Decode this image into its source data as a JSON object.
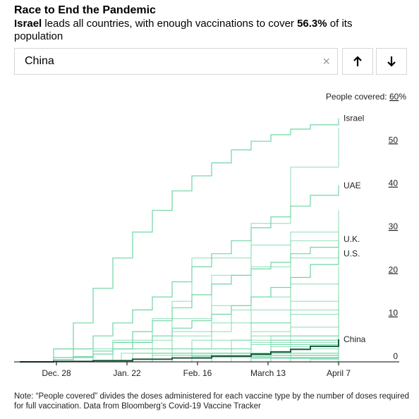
{
  "header": {
    "title": "Race to End the Pandemic",
    "subtitle_country": "Israel",
    "subtitle_mid": " leads all countries, with enough vaccinations to cover ",
    "subtitle_value": "56.3%",
    "subtitle_end": " of its population"
  },
  "search": {
    "value": "China",
    "clear_icon": "close-icon",
    "clear_glyph": "×",
    "prev_icon": "arrow-up-icon",
    "next_icon": "arrow-down-icon"
  },
  "note": "Note: “People covered” divides the doses administered for each vaccine type by the number of doses required for full vaccination. Data from Bloomberg’s Covid-19 Vaccine Tracker",
  "chart_data": {
    "type": "line",
    "title": "",
    "ylabel": "People covered:",
    "y_unit": "%",
    "ylim": [
      0,
      60
    ],
    "y_ticks": [
      0,
      10,
      20,
      30,
      40,
      50,
      60
    ],
    "x_start": "2020-12-13",
    "x_end": "2021-04-07",
    "x_ticks": [
      {
        "date": "2020-12-28",
        "label": "Dec. 28"
      },
      {
        "date": "2021-01-22",
        "label": "Jan. 22"
      },
      {
        "date": "2021-02-16",
        "label": "Feb. 16"
      },
      {
        "date": "2021-03-13",
        "label": "March 13"
      },
      {
        "date": "2021-04-07",
        "label": "April 7"
      }
    ],
    "colors": {
      "series": "#6fd6a4",
      "highlight": "#1f5a3c",
      "axis": "#000000"
    },
    "labeled_series": [
      {
        "name": "Israel",
        "points": [
          [
            "2020-12-20",
            0
          ],
          [
            "2020-12-27",
            3
          ],
          [
            "2021-01-03",
            9
          ],
          [
            "2021-01-10",
            17
          ],
          [
            "2021-01-17",
            24
          ],
          [
            "2021-01-24",
            30
          ],
          [
            "2021-01-31",
            35
          ],
          [
            "2021-02-07",
            39.5
          ],
          [
            "2021-02-14",
            43
          ],
          [
            "2021-02-21",
            46
          ],
          [
            "2021-02-28",
            49
          ],
          [
            "2021-03-07",
            51
          ],
          [
            "2021-03-14",
            52.5
          ],
          [
            "2021-03-21",
            53.8
          ],
          [
            "2021-03-28",
            54.8
          ],
          [
            "2021-04-07",
            56.3
          ]
        ]
      },
      {
        "name": "UAE",
        "points": [
          [
            "2020-12-18",
            0
          ],
          [
            "2020-12-27",
            1
          ],
          [
            "2021-01-03",
            3
          ],
          [
            "2021-01-10",
            6
          ],
          [
            "2021-01-17",
            9
          ],
          [
            "2021-01-24",
            12
          ],
          [
            "2021-01-31",
            15
          ],
          [
            "2021-02-07",
            18.5
          ],
          [
            "2021-02-14",
            22
          ],
          [
            "2021-02-21",
            25
          ],
          [
            "2021-02-28",
            28
          ],
          [
            "2021-03-07",
            31
          ],
          [
            "2021-03-14",
            33.5
          ],
          [
            "2021-03-21",
            36
          ],
          [
            "2021-03-28",
            38.5
          ],
          [
            "2021-04-07",
            40.8
          ]
        ]
      },
      {
        "name": "U.K.",
        "points": [
          [
            "2020-12-15",
            0
          ],
          [
            "2020-12-27",
            0.5
          ],
          [
            "2021-01-03",
            1.2
          ],
          [
            "2021-01-10",
            2.5
          ],
          [
            "2021-01-17",
            4.5
          ],
          [
            "2021-01-24",
            7
          ],
          [
            "2021-01-31",
            9.5
          ],
          [
            "2021-02-07",
            12.5
          ],
          [
            "2021-02-14",
            15.5
          ],
          [
            "2021-02-21",
            18
          ],
          [
            "2021-02-28",
            20
          ],
          [
            "2021-03-07",
            21.5
          ],
          [
            "2021-03-14",
            23
          ],
          [
            "2021-03-21",
            25
          ],
          [
            "2021-03-28",
            26.5
          ],
          [
            "2021-04-07",
            27.7
          ]
        ]
      },
      {
        "name": "U.S.",
        "points": [
          [
            "2020-12-15",
            0
          ],
          [
            "2020-12-27",
            0.5
          ],
          [
            "2021-01-03",
            1
          ],
          [
            "2021-01-10",
            1.8
          ],
          [
            "2021-01-17",
            3
          ],
          [
            "2021-01-24",
            4.5
          ],
          [
            "2021-01-31",
            6
          ],
          [
            "2021-02-07",
            7.8
          ],
          [
            "2021-02-14",
            9.5
          ],
          [
            "2021-02-21",
            11
          ],
          [
            "2021-02-28",
            13
          ],
          [
            "2021-03-07",
            15
          ],
          [
            "2021-03-14",
            17.2
          ],
          [
            "2021-03-21",
            19.5
          ],
          [
            "2021-03-28",
            22.5
          ],
          [
            "2021-04-07",
            26
          ]
        ]
      },
      {
        "name": "China",
        "points": [
          [
            "2020-12-15",
            0
          ],
          [
            "2020-12-27",
            0.1
          ],
          [
            "2021-01-10",
            0.3
          ],
          [
            "2021-01-24",
            0.6
          ],
          [
            "2021-02-07",
            0.9
          ],
          [
            "2021-02-21",
            1.3
          ],
          [
            "2021-03-07",
            1.8
          ],
          [
            "2021-03-14",
            2.3
          ],
          [
            "2021-03-21",
            2.9
          ],
          [
            "2021-03-28",
            3.6
          ],
          [
            "2021-04-07",
            5.2
          ]
        ]
      }
    ],
    "other_series": [
      {
        "points": [
          [
            "2020-12-20",
            0
          ],
          [
            "2021-01-10",
            3
          ],
          [
            "2021-01-31",
            10
          ],
          [
            "2021-02-21",
            20
          ],
          [
            "2021-03-07",
            32
          ],
          [
            "2021-03-21",
            45
          ],
          [
            "2021-04-07",
            54
          ]
        ]
      },
      {
        "points": [
          [
            "2021-01-01",
            0
          ],
          [
            "2021-01-20",
            2
          ],
          [
            "2021-02-07",
            6
          ],
          [
            "2021-02-21",
            13
          ],
          [
            "2021-03-07",
            22
          ],
          [
            "2021-03-21",
            30
          ],
          [
            "2021-04-07",
            35
          ]
        ]
      },
      {
        "points": [
          [
            "2021-01-05",
            0
          ],
          [
            "2021-01-31",
            3
          ],
          [
            "2021-02-21",
            9
          ],
          [
            "2021-03-07",
            15
          ],
          [
            "2021-03-21",
            24
          ],
          [
            "2021-04-07",
            31
          ]
        ]
      },
      {
        "points": [
          [
            "2020-12-20",
            0
          ],
          [
            "2021-01-17",
            5
          ],
          [
            "2021-02-07",
            14
          ],
          [
            "2021-02-14",
            24
          ],
          [
            "2021-03-07",
            27
          ],
          [
            "2021-03-21",
            28
          ],
          [
            "2021-04-07",
            30
          ]
        ]
      },
      {
        "points": [
          [
            "2020-12-25",
            0
          ],
          [
            "2021-01-17",
            3
          ],
          [
            "2021-02-07",
            7
          ],
          [
            "2021-02-28",
            12
          ],
          [
            "2021-03-21",
            18
          ],
          [
            "2021-04-07",
            22
          ]
        ]
      },
      {
        "points": [
          [
            "2021-01-10",
            0
          ],
          [
            "2021-02-07",
            3
          ],
          [
            "2021-03-07",
            9
          ],
          [
            "2021-03-21",
            14
          ],
          [
            "2021-04-07",
            19
          ]
        ]
      },
      {
        "points": [
          [
            "2021-01-15",
            0
          ],
          [
            "2021-02-14",
            3
          ],
          [
            "2021-03-07",
            7
          ],
          [
            "2021-03-21",
            11
          ],
          [
            "2021-04-07",
            16
          ]
        ]
      },
      {
        "points": [
          [
            "2020-12-28",
            0
          ],
          [
            "2021-01-24",
            2
          ],
          [
            "2021-02-14",
            5
          ],
          [
            "2021-03-07",
            9
          ],
          [
            "2021-03-21",
            12
          ],
          [
            "2021-04-07",
            14
          ]
        ]
      },
      {
        "points": [
          [
            "2021-01-05",
            0
          ],
          [
            "2021-02-07",
            2
          ],
          [
            "2021-03-07",
            6
          ],
          [
            "2021-04-07",
            13
          ]
        ]
      },
      {
        "points": [
          [
            "2021-01-20",
            0
          ],
          [
            "2021-02-21",
            2
          ],
          [
            "2021-03-14",
            6
          ],
          [
            "2021-04-07",
            12
          ]
        ]
      },
      {
        "points": [
          [
            "2020-12-28",
            0
          ],
          [
            "2021-01-31",
            2
          ],
          [
            "2021-02-28",
            5
          ],
          [
            "2021-03-21",
            8
          ],
          [
            "2021-04-07",
            11
          ]
        ]
      },
      {
        "points": [
          [
            "2021-01-10",
            0
          ],
          [
            "2021-02-14",
            2
          ],
          [
            "2021-03-14",
            5
          ],
          [
            "2021-04-07",
            10
          ]
        ]
      },
      {
        "points": [
          [
            "2021-01-01",
            0
          ],
          [
            "2021-02-07",
            1.5
          ],
          [
            "2021-03-07",
            4
          ],
          [
            "2021-04-07",
            9.5
          ]
        ]
      },
      {
        "points": [
          [
            "2021-01-15",
            0
          ],
          [
            "2021-02-21",
            2
          ],
          [
            "2021-03-21",
            5
          ],
          [
            "2021-04-07",
            9
          ]
        ]
      },
      {
        "points": [
          [
            "2020-12-28",
            0
          ],
          [
            "2021-01-31",
            1.5
          ],
          [
            "2021-03-07",
            4.5
          ],
          [
            "2021-04-07",
            8.5
          ]
        ]
      },
      {
        "points": [
          [
            "2021-01-10",
            0
          ],
          [
            "2021-02-14",
            1.5
          ],
          [
            "2021-03-14",
            4
          ],
          [
            "2021-04-07",
            8
          ]
        ]
      },
      {
        "points": [
          [
            "2021-01-20",
            0
          ],
          [
            "2021-02-28",
            2
          ],
          [
            "2021-04-07",
            7.5
          ]
        ]
      },
      {
        "points": [
          [
            "2021-01-05",
            0
          ],
          [
            "2021-02-14",
            1.2
          ],
          [
            "2021-03-14",
            3.5
          ],
          [
            "2021-04-07",
            7
          ]
        ]
      },
      {
        "points": [
          [
            "2021-01-25",
            0
          ],
          [
            "2021-03-07",
            2
          ],
          [
            "2021-04-07",
            6.5
          ]
        ]
      },
      {
        "points": [
          [
            "2021-01-15",
            0
          ],
          [
            "2021-02-21",
            1
          ],
          [
            "2021-03-21",
            3
          ],
          [
            "2021-04-07",
            6
          ]
        ]
      },
      {
        "points": [
          [
            "2021-02-01",
            0
          ],
          [
            "2021-03-07",
            1.5
          ],
          [
            "2021-04-07",
            5.5
          ]
        ]
      },
      {
        "points": [
          [
            "2021-01-20",
            0
          ],
          [
            "2021-03-07",
            1.5
          ],
          [
            "2021-04-07",
            5
          ]
        ]
      },
      {
        "points": [
          [
            "2021-02-05",
            0
          ],
          [
            "2021-03-14",
            1.5
          ],
          [
            "2021-04-07",
            4.5
          ]
        ]
      },
      {
        "points": [
          [
            "2021-01-25",
            0
          ],
          [
            "2021-03-07",
            1
          ],
          [
            "2021-04-07",
            4
          ]
        ]
      },
      {
        "points": [
          [
            "2021-02-10",
            0
          ],
          [
            "2021-03-14",
            1
          ],
          [
            "2021-04-07",
            3.5
          ]
        ]
      },
      {
        "points": [
          [
            "2021-02-01",
            0
          ],
          [
            "2021-03-07",
            0.8
          ],
          [
            "2021-04-07",
            3
          ]
        ]
      },
      {
        "points": [
          [
            "2021-02-15",
            0
          ],
          [
            "2021-03-21",
            1
          ],
          [
            "2021-04-07",
            2.5
          ]
        ]
      },
      {
        "points": [
          [
            "2021-02-20",
            0
          ],
          [
            "2021-03-21",
            0.8
          ],
          [
            "2021-04-07",
            2
          ]
        ]
      },
      {
        "points": [
          [
            "2021-02-25",
            0
          ],
          [
            "2021-03-28",
            0.6
          ],
          [
            "2021-04-07",
            1.5
          ]
        ]
      },
      {
        "points": [
          [
            "2021-03-01",
            0
          ],
          [
            "2021-04-07",
            1
          ]
        ]
      }
    ]
  }
}
